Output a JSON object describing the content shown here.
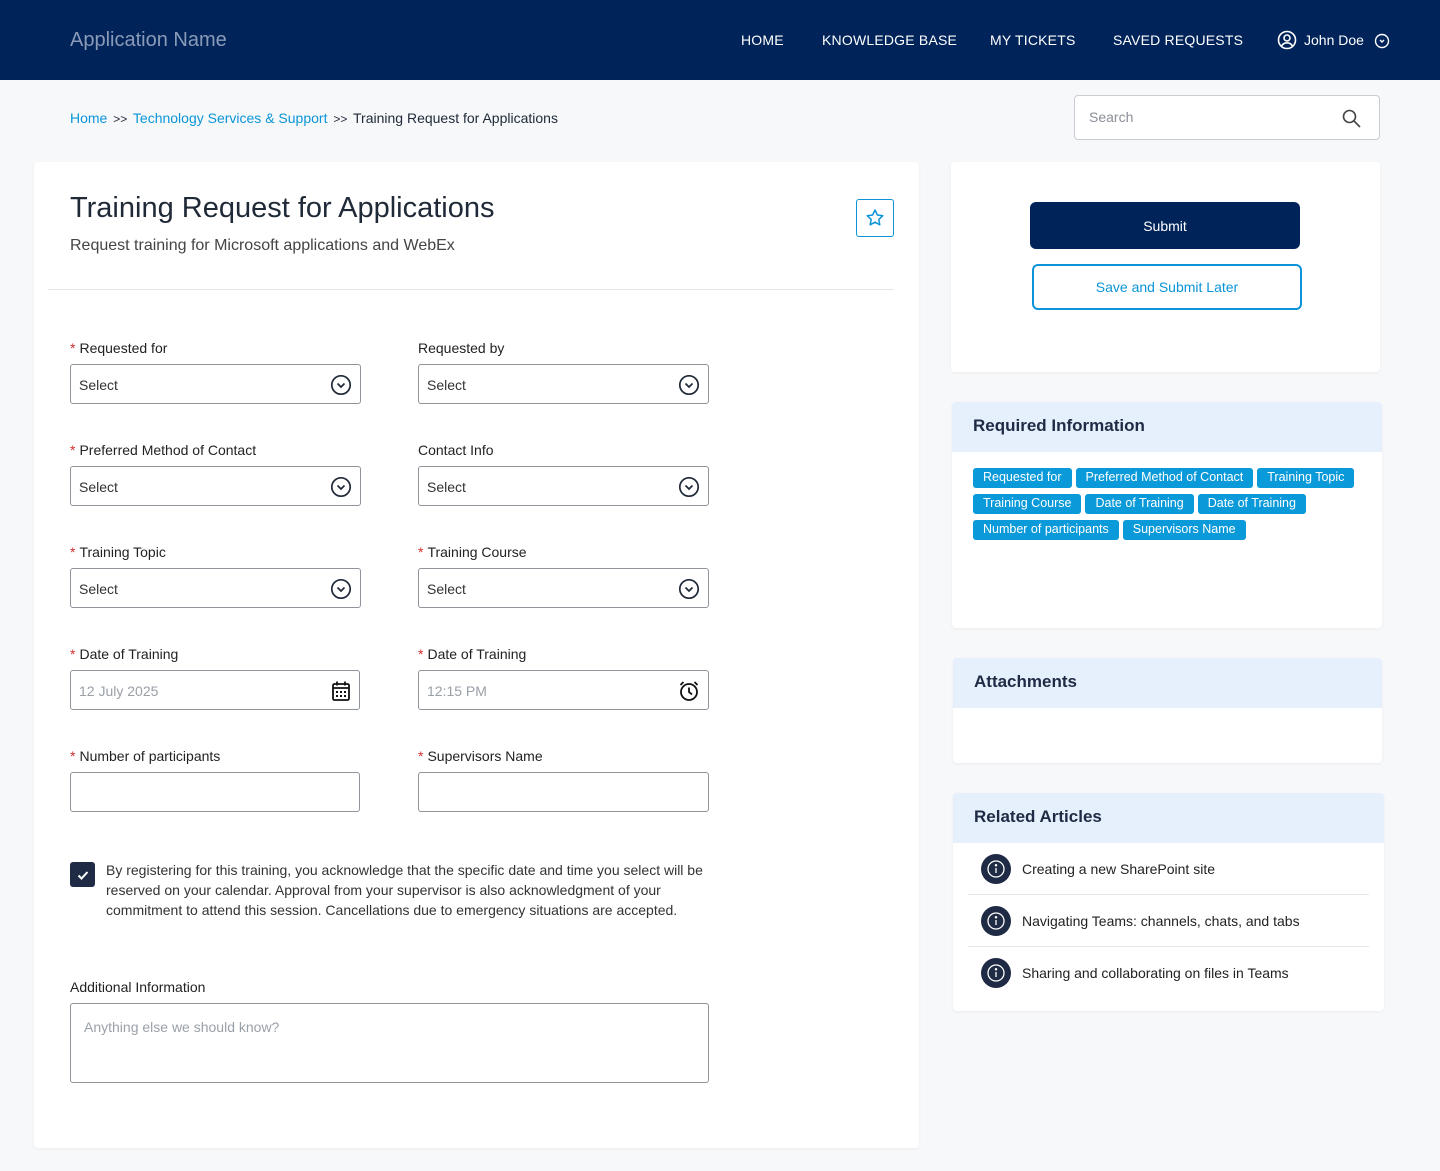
{
  "header": {
    "app_name": "Application Name",
    "nav": [
      "HOME",
      "KNOWLEDGE BASE",
      "MY TICKETS",
      "SAVED REQUESTS"
    ],
    "user": "John Doe"
  },
  "breadcrumb": {
    "home": "Home",
    "sep": ">>",
    "category": "Technology Services & Support",
    "current": "Training Request for Applications"
  },
  "search": {
    "placeholder": "Search"
  },
  "form": {
    "title": "Training Request for Applications",
    "subtitle": "Request training for Microsoft applications and WebEx",
    "fields": [
      {
        "label": "Requested for",
        "required": true,
        "value": "Select"
      },
      {
        "label": "Requested by",
        "required": false,
        "value": "Select"
      },
      {
        "label": "Preferred Method of Contact",
        "required": true,
        "value": "Select"
      },
      {
        "label": "Contact Info",
        "required": false,
        "value": "Select"
      },
      {
        "label": "Training Topic",
        "required": true,
        "value": "Select"
      },
      {
        "label": "Training Course",
        "required": true,
        "value": "Select"
      },
      {
        "label": "Date of Training",
        "required": true,
        "value": "12 July 2025"
      },
      {
        "label": "Date of Training",
        "required": true,
        "value": "12:15 PM"
      },
      {
        "label": "Number of participants",
        "required": true,
        "value": ""
      },
      {
        "label": "Supervisors Name",
        "required": true,
        "value": ""
      }
    ],
    "acknowledgement": "By registering for this training, you acknowledge that the specific date and time you select will be reserved on your calendar. Approval from your supervisor is also acknowledgment of your commitment to attend this session. Cancellations due to emergency situations are accepted.",
    "acknowledged": true,
    "additional_label": "Additional Information",
    "additional_placeholder": "Anything else we should know?"
  },
  "actions": {
    "submit": "Submit",
    "save_later": "Save and Submit Later"
  },
  "required_info": {
    "title": "Required Information",
    "tags": [
      "Requested for",
      "Preferred Method of Contact",
      "Training Topic",
      "Training Course",
      "Date of Training",
      "Date of Training",
      "Number of participants",
      "Supervisors Name"
    ]
  },
  "attachments": {
    "title": "Attachments"
  },
  "related": {
    "title": "Related Articles",
    "items": [
      "Creating a new SharePoint site",
      "Navigating Teams: channels, chats, and tabs",
      "Sharing and collaborating on files in Teams"
    ]
  }
}
